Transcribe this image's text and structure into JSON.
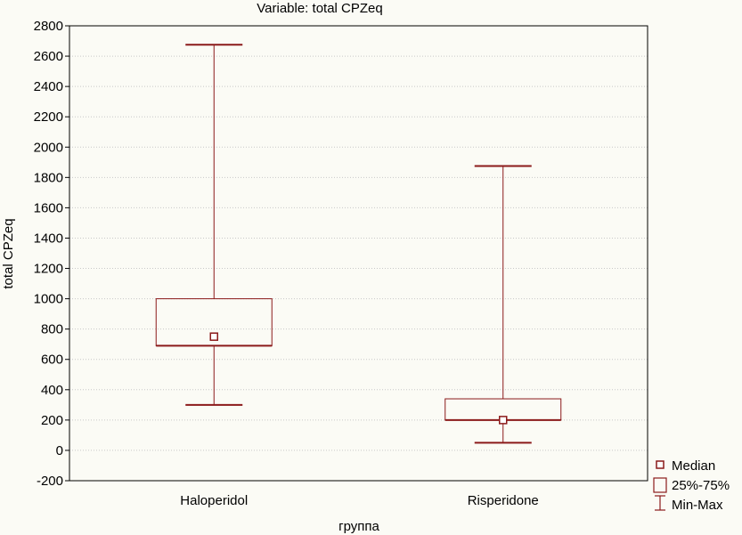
{
  "chart_data": {
    "type": "boxplot",
    "title": "Variable: total CPZeq",
    "xlabel": "группа",
    "ylabel": "total CPZeq",
    "ylim": [
      -200,
      2800
    ],
    "yticks": [
      -200,
      0,
      200,
      400,
      600,
      800,
      1000,
      1200,
      1400,
      1600,
      1800,
      2000,
      2200,
      2400,
      2600,
      2800
    ],
    "grid": true,
    "categories": [
      "Haloperidol",
      "Risperidone"
    ],
    "series": [
      {
        "name": "Haloperidol",
        "min": 300,
        "q1": 690,
        "median": 750,
        "q3": 1000,
        "max": 2675
      },
      {
        "name": "Risperidone",
        "min": 50,
        "q1": 200,
        "median": 200,
        "q3": 340,
        "max": 1875
      }
    ],
    "legend": {
      "position": "bottom-right",
      "items": [
        "Median",
        "25%-75%",
        "Min-Max"
      ]
    },
    "colors": {
      "series": "#8b1a1a",
      "grid": "#c8c8c8",
      "background": "#fbfbf5"
    }
  }
}
